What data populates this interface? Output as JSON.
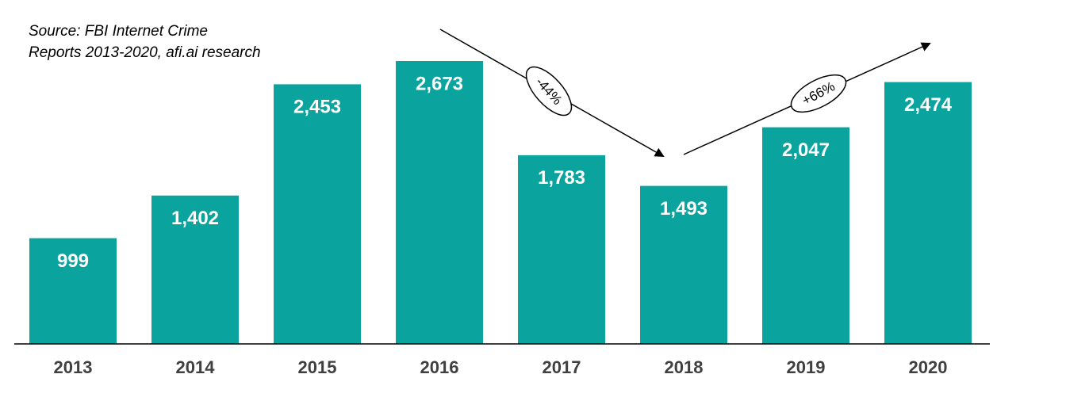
{
  "chart_data": {
    "type": "bar",
    "source": [
      "Source: FBI Internet Crime",
      "Reports 2013-2020, afi.ai research"
    ],
    "categories": [
      "2013",
      "2014",
      "2015",
      "2016",
      "2017",
      "2018",
      "2019",
      "2020"
    ],
    "values": [
      999,
      1402,
      2453,
      2673,
      1783,
      1493,
      2047,
      2474
    ],
    "value_labels": [
      "999",
      "1,402",
      "2,453",
      "2,673",
      "1,783",
      "1,493",
      "2,047",
      "2,474"
    ],
    "color": "#0ba39e",
    "annotations": [
      "-44%",
      "+66%"
    ]
  }
}
